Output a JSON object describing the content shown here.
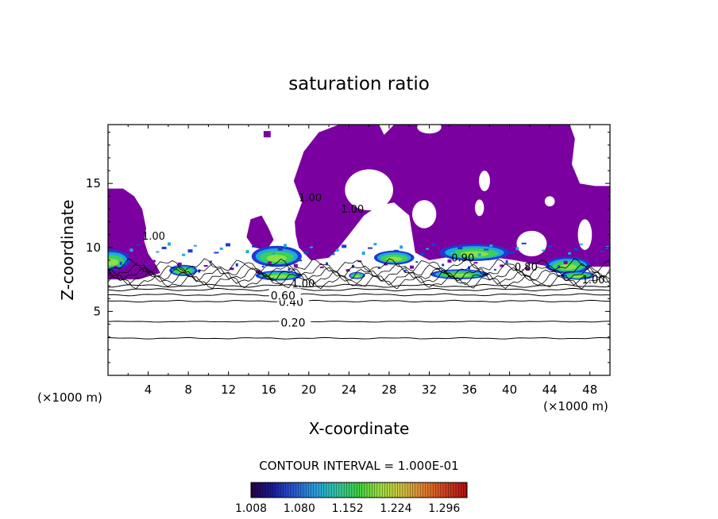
{
  "chart_data": {
    "type": "heatmap",
    "title": "saturation ratio",
    "xlabel": "X-coordinate",
    "ylabel": "Z-coordinate",
    "x_unit_left": "(×1000 m)",
    "x_unit_right": "(×1000 m)",
    "xlim": [
      0,
      50
    ],
    "ylim": [
      0,
      19.6
    ],
    "x_ticks": [
      4,
      8,
      12,
      16,
      20,
      24,
      28,
      32,
      36,
      40,
      44,
      48
    ],
    "x_tick_labels": [
      "4",
      "8",
      "12",
      "16",
      "20",
      "24",
      "28",
      "32",
      "36",
      "40",
      "44",
      "48"
    ],
    "y_ticks": [
      5,
      10,
      15
    ],
    "y_tick_labels": [
      "5",
      "10",
      "15"
    ],
    "contour_interval_text": "CONTOUR INTERVAL = 1.000E-01",
    "contour_levels": [
      {
        "label": "0.20",
        "z_left": 4.2,
        "labeled": true,
        "label_x": 17.2
      },
      {
        "label": "",
        "z_left": 2.9,
        "labeled": false
      },
      {
        "label": "0.40",
        "z_left": 5.8,
        "labeled": true,
        "label_x": 17.0
      },
      {
        "label": "0.60",
        "z_left": 6.3,
        "labeled": true,
        "label_x": 16.2
      },
      {
        "label": "",
        "z_left": 6.7,
        "labeled": false
      },
      {
        "label": "",
        "z_left": 7.0,
        "labeled": false
      }
    ],
    "inline_labels": [
      {
        "text": "0.80",
        "x": 40.5,
        "z": 8.2
      },
      {
        "text": "1.00",
        "x": 47.2,
        "z": 7.2
      },
      {
        "text": "1.00",
        "x": 18.3,
        "z": 6.9
      },
      {
        "text": "1.00",
        "x": 23.2,
        "z": 12.7
      },
      {
        "text": "1.00",
        "x": 19.0,
        "z": 13.6
      },
      {
        "text": "1.00",
        "x": 3.4,
        "z": 10.6
      },
      {
        "text": "0.90",
        "x": 34.2,
        "z": 8.9
      }
    ],
    "colorbar": {
      "min": 1.008,
      "max": 1.33,
      "tick_labels": [
        "1.008",
        "1.080",
        "1.152",
        "1.224",
        "1.296"
      ],
      "colors": [
        "#2a0040",
        "#1a1a9a",
        "#2a5ad0",
        "#2aa0e0",
        "#30c8a0",
        "#40d040",
        "#a0e040",
        "#d0c040",
        "#e08030",
        "#d04020",
        "#b01010"
      ]
    },
    "fill_colors": {
      "supersat_low": "#7b00a0",
      "blue": "#1e3ad0",
      "cyan": "#1ea8e0",
      "green": "#3ad05a",
      "lime": "#8ae04a"
    }
  }
}
